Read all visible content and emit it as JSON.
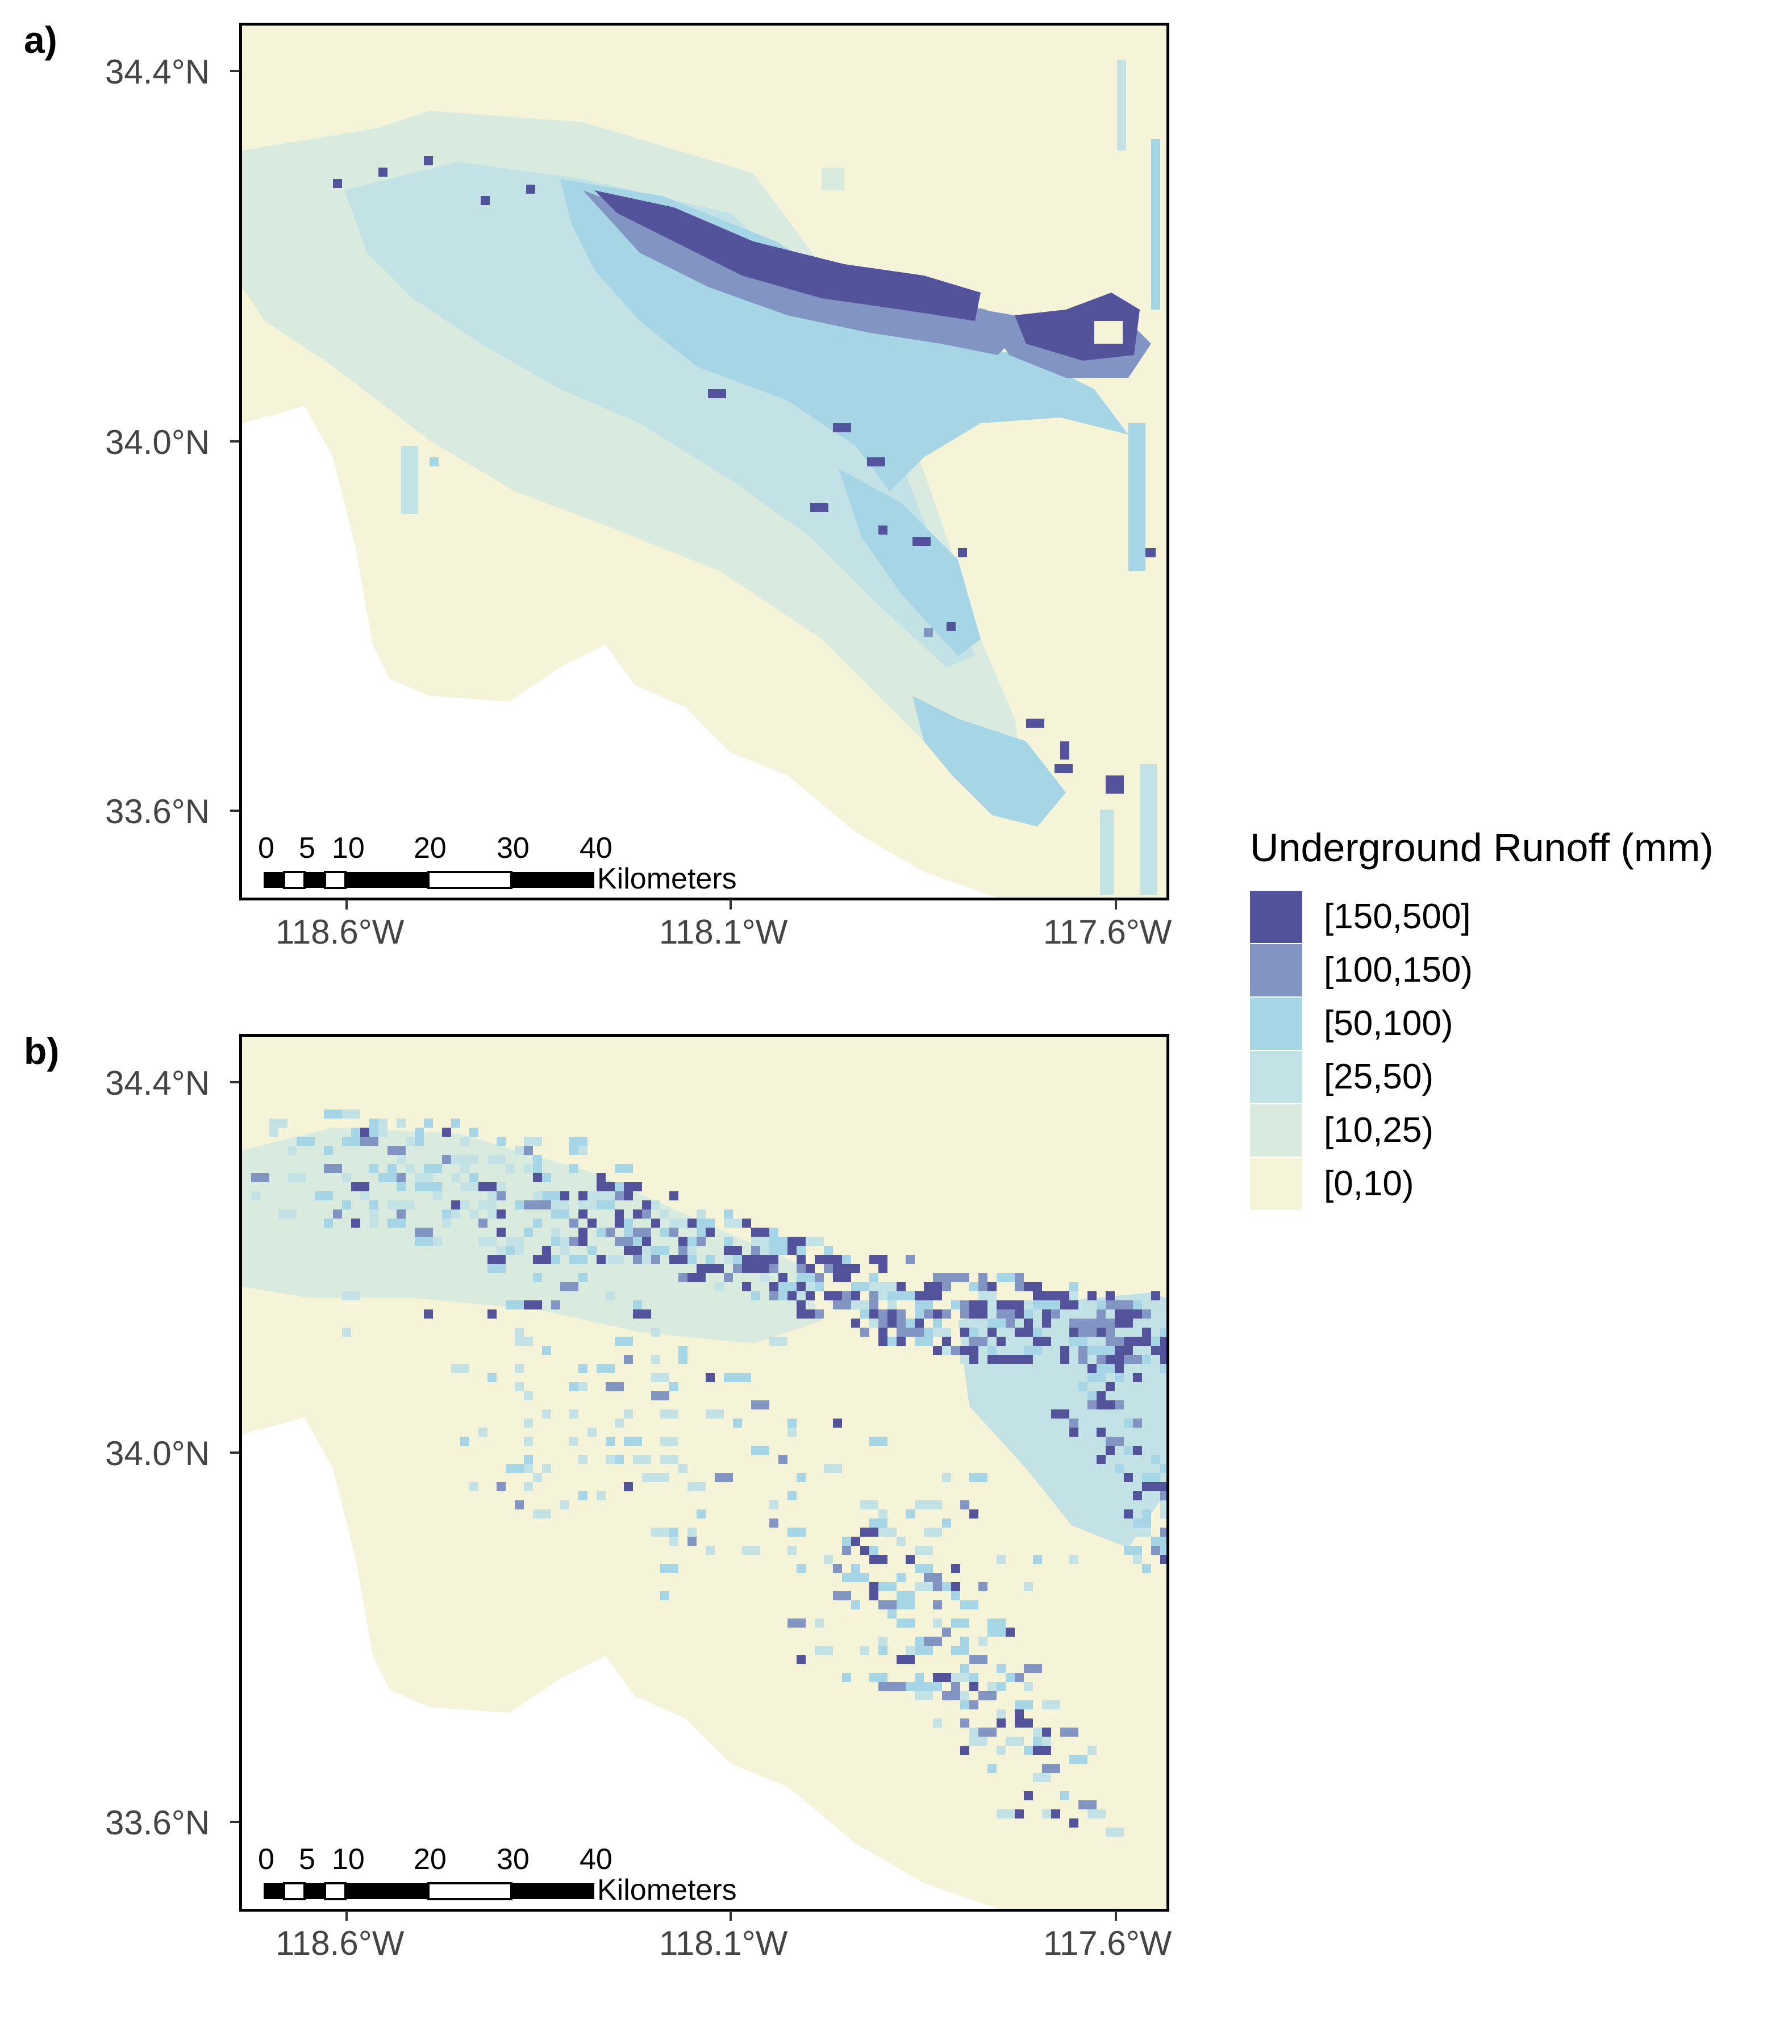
{
  "colors": {
    "c150_500": "#52539b",
    "c100_150": "#8294c2",
    "c50_100": "#a6d5e6",
    "c25_50": "#c3e2e5",
    "c10_25": "#d9eadf",
    "c0_10": "#f5f4d8",
    "background": "#ffffff"
  },
  "panels": [
    {
      "letter": "a)",
      "lat_ticks": [
        "34.4°N",
        "34.0°N",
        "33.6°N"
      ],
      "lon_ticks": [
        "118.6°W",
        "118.1°W",
        "117.6°W"
      ],
      "scalebar": {
        "numbers": [
          "0",
          "5",
          "10",
          "20",
          "30",
          "40"
        ],
        "unit": "Kilometers"
      }
    },
    {
      "letter": "b)",
      "lat_ticks": [
        "34.4°N",
        "34.0°N",
        "33.6°N"
      ],
      "lon_ticks": [
        "118.6°W",
        "118.1°W",
        "117.6°W"
      ],
      "scalebar": {
        "numbers": [
          "0",
          "5",
          "10",
          "20",
          "30",
          "40"
        ],
        "unit": "Kilometers"
      }
    }
  ],
  "legend": {
    "title": "Underground Runoff (mm)",
    "items": [
      {
        "label": "[150,500]",
        "color": "#52539b"
      },
      {
        "label": "[100,150)",
        "color": "#8294c2"
      },
      {
        "label": "[50,100)",
        "color": "#a6d5e6"
      },
      {
        "label": "[25,50)",
        "color": "#c3e2e5"
      },
      {
        "label": "[10,25)",
        "color": "#d9eadf"
      },
      {
        "label": "[0,10)",
        "color": "#f5f4d8"
      }
    ]
  }
}
